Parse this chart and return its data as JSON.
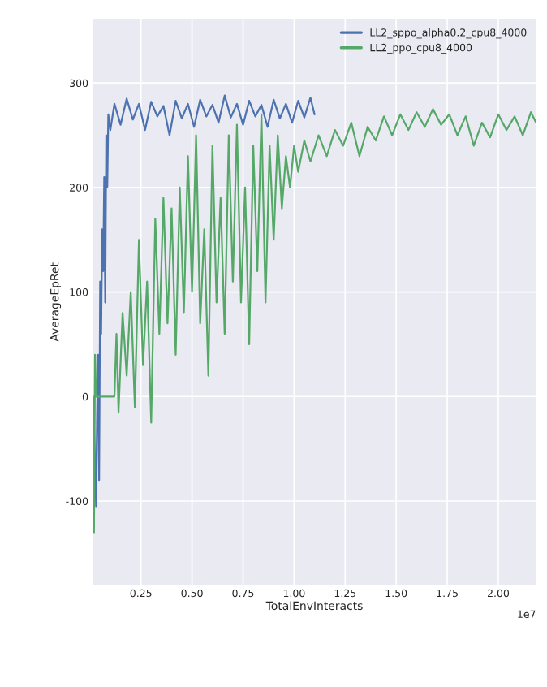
{
  "chart_data": {
    "type": "line",
    "xlabel": "TotalEnvInteracts",
    "ylabel": "AverageEpRet",
    "annotations": [
      "1e7"
    ],
    "xlim": [
      0.015,
      2.185
    ],
    "ylim": [
      -180,
      361
    ],
    "xticks": [
      0.25,
      {
        "value": 0.5,
        "label": "0.50"
      },
      0.75,
      {
        "value": 1.0,
        "label": "1.00"
      },
      1.25,
      {
        "value": 1.5,
        "label": "1.50"
      },
      1.75,
      {
        "value": 2.0,
        "label": "2.00"
      }
    ],
    "yticks": [
      -100,
      0,
      100,
      200,
      300
    ],
    "grid": true,
    "legend": "top right",
    "series": [
      {
        "name": "LL2_sppo_alpha0.2_cpu8_4000",
        "color": "#4c72b0",
        "x": [
          0.015,
          0.025,
          0.03,
          0.035,
          0.04,
          0.045,
          0.05,
          0.055,
          0.06,
          0.065,
          0.07,
          0.075,
          0.08,
          0.085,
          0.09,
          0.1,
          0.12,
          0.15,
          0.18,
          0.21,
          0.24,
          0.27,
          0.3,
          0.33,
          0.36,
          0.39,
          0.42,
          0.45,
          0.48,
          0.51,
          0.54,
          0.57,
          0.6,
          0.63,
          0.66,
          0.69,
          0.72,
          0.75,
          0.78,
          0.81,
          0.84,
          0.87,
          0.9,
          0.93,
          0.96,
          0.99,
          1.02,
          1.05,
          1.08,
          1.1
        ],
        "values": [
          0,
          -60,
          -105,
          -20,
          40,
          -80,
          110,
          60,
          160,
          120,
          210,
          90,
          250,
          200,
          270,
          255,
          280,
          260,
          285,
          265,
          280,
          255,
          282,
          268,
          278,
          250,
          283,
          266,
          280,
          258,
          284,
          268,
          279,
          262,
          288,
          267,
          280,
          260,
          283,
          268,
          279,
          258,
          284,
          266,
          280,
          262,
          283,
          267,
          286,
          270
        ]
      },
      {
        "name": "LL2_ppo_cpu8_4000",
        "color": "#55a868",
        "x": [
          0.015,
          0.02,
          0.025,
          0.03,
          0.06,
          0.1,
          0.12,
          0.13,
          0.14,
          0.16,
          0.18,
          0.2,
          0.22,
          0.24,
          0.26,
          0.28,
          0.3,
          0.32,
          0.34,
          0.36,
          0.38,
          0.4,
          0.42,
          0.44,
          0.46,
          0.48,
          0.5,
          0.52,
          0.54,
          0.56,
          0.58,
          0.6,
          0.62,
          0.64,
          0.66,
          0.68,
          0.7,
          0.72,
          0.74,
          0.76,
          0.78,
          0.8,
          0.82,
          0.84,
          0.86,
          0.88,
          0.9,
          0.92,
          0.94,
          0.96,
          0.98,
          1.0,
          1.02,
          1.05,
          1.08,
          1.12,
          1.16,
          1.2,
          1.24,
          1.28,
          1.32,
          1.36,
          1.4,
          1.44,
          1.48,
          1.52,
          1.56,
          1.6,
          1.64,
          1.68,
          1.72,
          1.76,
          1.8,
          1.84,
          1.88,
          1.92,
          1.96,
          2.0,
          2.04,
          2.08,
          2.12,
          2.16,
          2.185
        ],
        "values": [
          0,
          -130,
          40,
          0,
          0,
          0,
          0,
          60,
          -15,
          80,
          20,
          100,
          -10,
          150,
          30,
          110,
          -25,
          170,
          60,
          190,
          70,
          180,
          40,
          200,
          80,
          230,
          100,
          250,
          70,
          160,
          20,
          240,
          90,
          190,
          60,
          250,
          110,
          260,
          90,
          200,
          50,
          240,
          120,
          270,
          90,
          240,
          150,
          250,
          180,
          230,
          200,
          240,
          215,
          245,
          225,
          250,
          230,
          255,
          240,
          262,
          230,
          258,
          245,
          268,
          250,
          270,
          255,
          272,
          258,
          275,
          260,
          270,
          250,
          268,
          240,
          262,
          248,
          270,
          255,
          268,
          250,
          272,
          262
        ]
      }
    ]
  }
}
